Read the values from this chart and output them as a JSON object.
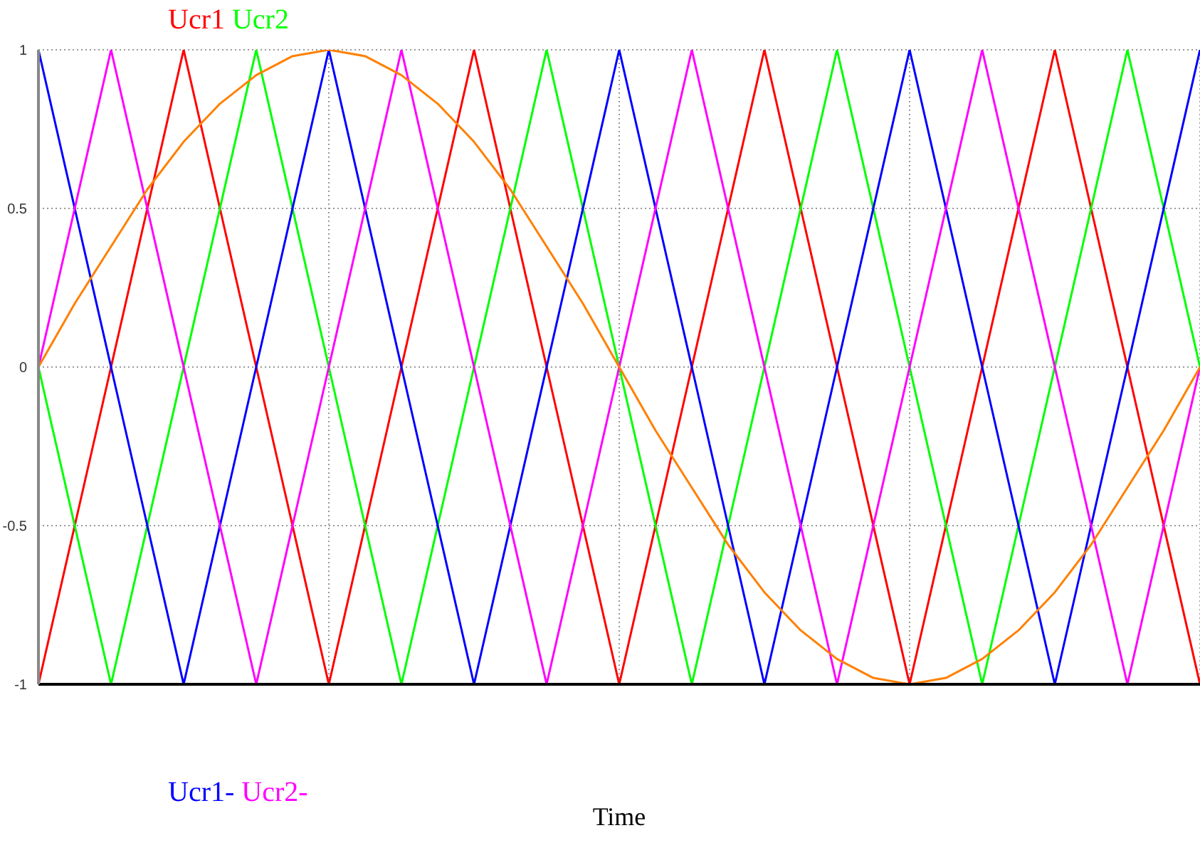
{
  "chart_data": {
    "type": "line",
    "xlabel": "Time",
    "categories": [
      null,
      null,
      null,
      null,
      null,
      null,
      null,
      null,
      null,
      null,
      null,
      null,
      null,
      null,
      null,
      null,
      null,
      null,
      null,
      null,
      null,
      null,
      null,
      null,
      null,
      null,
      null,
      null,
      null,
      null,
      null,
      null,
      null
    ],
    "ylim": [
      -1,
      1
    ],
    "yticks": [
      -1,
      -0.5,
      0,
      0.5,
      1
    ],
    "grid": true,
    "marker": "none",
    "line_style": "solid",
    "series": [
      {
        "name": "Ucr1",
        "color": "#ff0000",
        "values": [
          -1,
          -0.5,
          0,
          0.5,
          1,
          0.5,
          0,
          -0.5,
          -1,
          -0.5,
          0,
          0.5,
          1,
          0.5,
          0,
          -0.5,
          -1,
          -0.5,
          0,
          0.5,
          1,
          0.5,
          0,
          -0.5,
          -1,
          -0.5,
          0,
          0.5,
          1,
          0.5,
          0,
          -0.5,
          -1
        ]
      },
      {
        "name": "Ucr2",
        "color": "#00ff00",
        "values": [
          0,
          -0.5,
          -1,
          -0.5,
          0,
          0.5,
          1,
          0.5,
          0,
          -0.5,
          -1,
          -0.5,
          0,
          0.5,
          1,
          0.5,
          0,
          -0.5,
          -1,
          -0.5,
          0,
          0.5,
          1,
          0.5,
          0,
          -0.5,
          -1,
          -0.5,
          0,
          0.5,
          1,
          0.5,
          0
        ]
      },
      {
        "name": "Ucr1-",
        "color": "#0000ff",
        "values": [
          1,
          0.5,
          0,
          -0.5,
          -1,
          -0.5,
          0,
          0.5,
          1,
          0.5,
          0,
          -0.5,
          -1,
          -0.5,
          0,
          0.5,
          1,
          0.5,
          0,
          -0.5,
          -1,
          -0.5,
          0,
          0.5,
          1,
          0.5,
          0,
          -0.5,
          -1,
          -0.5,
          0,
          0.5,
          1
        ]
      },
      {
        "name": "Ucr2-",
        "color": "#ff00ff",
        "values": [
          0,
          0.5,
          1,
          0.5,
          0,
          -0.5,
          -1,
          -0.5,
          0,
          0.5,
          1,
          0.5,
          0,
          -0.5,
          -1,
          -0.5,
          0,
          0.5,
          1,
          0.5,
          0,
          -0.5,
          -1,
          -0.5,
          0,
          0.5,
          1,
          0.5,
          0,
          -0.5,
          -1,
          -0.5,
          0
        ]
      },
      {
        "color": "#ff8000",
        "values": [
          0,
          0.2,
          0.38,
          0.56,
          0.71,
          0.83,
          0.92,
          0.98,
          1,
          0.98,
          0.92,
          0.83,
          0.71,
          0.56,
          0.38,
          0.2,
          0,
          -0.2,
          -0.38,
          -0.56,
          -0.71,
          -0.83,
          -0.92,
          -0.98,
          -1,
          -0.98,
          -0.92,
          -0.83,
          -0.71,
          -0.56,
          -0.38,
          -0.2,
          0
        ]
      }
    ]
  }
}
